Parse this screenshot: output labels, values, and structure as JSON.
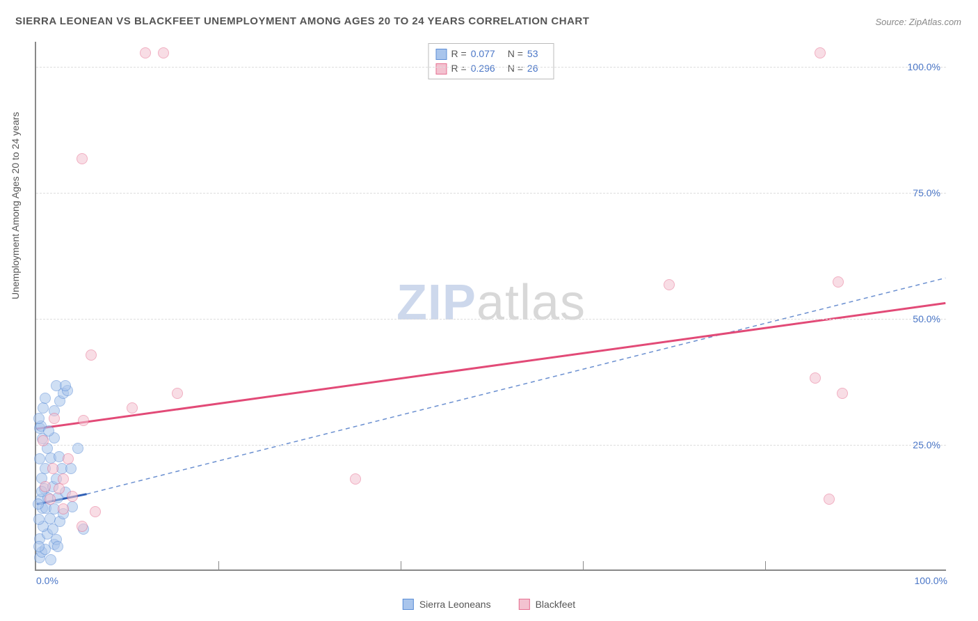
{
  "title": "SIERRA LEONEAN VS BLACKFEET UNEMPLOYMENT AMONG AGES 20 TO 24 YEARS CORRELATION CHART",
  "source": "Source: ZipAtlas.com",
  "watermark": {
    "part1": "ZIP",
    "part2": "atlas"
  },
  "ylabel": "Unemployment Among Ages 20 to 24 years",
  "chart": {
    "type": "scatter",
    "xlim": [
      0,
      100
    ],
    "ylim": [
      0,
      105
    ],
    "xticks": [
      0,
      20,
      40,
      60,
      80,
      100
    ],
    "xtick_labels_shown": {
      "0": "0.0%",
      "100": "100.0%"
    },
    "yticks": [
      25,
      50,
      75,
      100
    ],
    "ytick_labels": [
      "25.0%",
      "50.0%",
      "75.0%",
      "100.0%"
    ],
    "grid_color": "#dddddd",
    "axis_color": "#888888",
    "background_color": "#ffffff",
    "point_radius": 8,
    "point_opacity": 0.55,
    "series": [
      {
        "name": "Sierra Leoneans",
        "color_fill": "#a9c5ec",
        "color_stroke": "#5b8dd6",
        "R": "0.077",
        "N": "53",
        "trend": {
          "x1": 0,
          "y1": 13,
          "x2": 5.5,
          "y2": 15,
          "color": "#2f5fb5",
          "dash": null,
          "width": 3
        },
        "trend_ext": {
          "x1": 5.5,
          "y1": 15,
          "x2": 100,
          "y2": 58,
          "color": "#6a8fd0",
          "dash": "6 5",
          "width": 1.5
        },
        "points": [
          [
            0.4,
            2.3
          ],
          [
            0.6,
            3.5
          ],
          [
            1.0,
            4.0
          ],
          [
            1.6,
            2.0
          ],
          [
            2.0,
            5.0
          ],
          [
            0.4,
            6.1
          ],
          [
            1.2,
            7.0
          ],
          [
            2.2,
            6.0
          ],
          [
            0.8,
            8.5
          ],
          [
            0.3,
            10.0
          ],
          [
            1.5,
            10.1
          ],
          [
            2.6,
            9.5
          ],
          [
            0.7,
            12.1
          ],
          [
            1.1,
            12.2
          ],
          [
            2.0,
            12.0
          ],
          [
            3.0,
            11.0
          ],
          [
            0.5,
            14.0
          ],
          [
            1.3,
            14.2
          ],
          [
            2.4,
            14.2
          ],
          [
            0.9,
            16.0
          ],
          [
            1.8,
            16.5
          ],
          [
            3.2,
            15.4
          ],
          [
            0.6,
            18.1
          ],
          [
            2.2,
            18.0
          ],
          [
            1.0,
            20.0
          ],
          [
            2.8,
            20.1
          ],
          [
            0.4,
            22.0
          ],
          [
            1.6,
            22.1
          ],
          [
            2.5,
            22.4
          ],
          [
            1.2,
            24.0
          ],
          [
            0.7,
            26.0
          ],
          [
            2.0,
            26.1
          ],
          [
            0.4,
            28.0
          ],
          [
            0.5,
            28.4
          ],
          [
            1.4,
            27.5
          ],
          [
            0.3,
            30.0
          ],
          [
            0.8,
            32.0
          ],
          [
            2.0,
            31.5
          ],
          [
            1.0,
            34.0
          ],
          [
            2.6,
            33.5
          ],
          [
            3.0,
            35.0
          ],
          [
            3.4,
            35.5
          ],
          [
            2.2,
            36.5
          ],
          [
            3.2,
            36.5
          ],
          [
            5.2,
            8.0
          ],
          [
            4.0,
            12.5
          ],
          [
            3.8,
            20.0
          ],
          [
            4.6,
            24.0
          ],
          [
            0.3,
            4.5
          ],
          [
            0.2,
            13.0
          ],
          [
            0.6,
            15.5
          ],
          [
            1.8,
            8.0
          ],
          [
            2.4,
            4.5
          ]
        ]
      },
      {
        "name": "Blackfeet",
        "color_fill": "#f3c2d0",
        "color_stroke": "#e66f91",
        "R": "0.296",
        "N": "26",
        "trend": {
          "x1": 0,
          "y1": 28,
          "x2": 100,
          "y2": 53,
          "color": "#e24a77",
          "dash": null,
          "width": 3
        },
        "points": [
          [
            1.5,
            14.0
          ],
          [
            2.5,
            16.0
          ],
          [
            4.0,
            14.5
          ],
          [
            5.0,
            8.5
          ],
          [
            6.5,
            11.5
          ],
          [
            3.0,
            18.0
          ],
          [
            1.8,
            20.0
          ],
          [
            3.5,
            22.0
          ],
          [
            0.8,
            25.5
          ],
          [
            2.0,
            30.0
          ],
          [
            5.2,
            29.5
          ],
          [
            10.5,
            32.0
          ],
          [
            15.5,
            35.0
          ],
          [
            6.0,
            42.5
          ],
          [
            5.0,
            81.5
          ],
          [
            12.0,
            102.5
          ],
          [
            14.0,
            102.5
          ],
          [
            35.0,
            18.0
          ],
          [
            69.5,
            56.5
          ],
          [
            85.5,
            38.0
          ],
          [
            88.0,
            57.0
          ],
          [
            88.5,
            35.0
          ],
          [
            87.0,
            14.0
          ],
          [
            86.0,
            102.5
          ],
          [
            3.0,
            12.0
          ],
          [
            1.0,
            16.5
          ]
        ]
      }
    ]
  },
  "colors": {
    "tick_label": "#4a76c7",
    "text": "#555555"
  }
}
